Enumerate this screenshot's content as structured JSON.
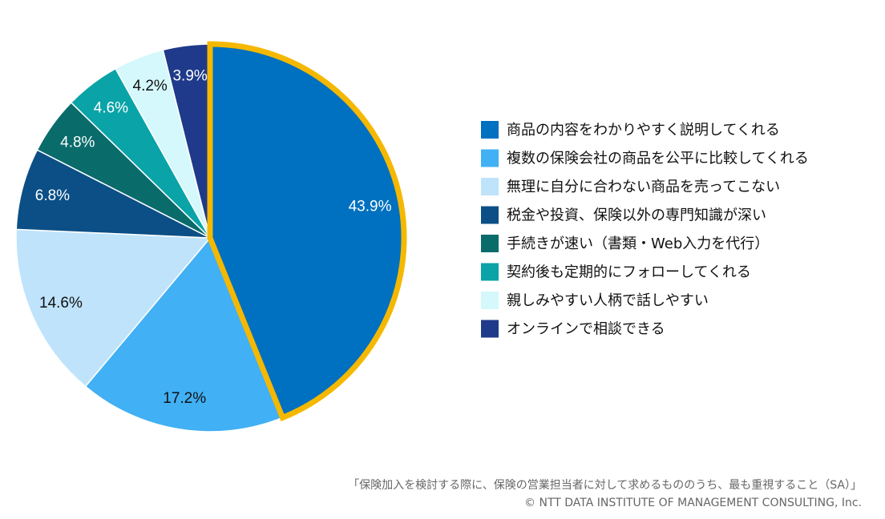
{
  "chart_data": {
    "type": "pie",
    "categories": [
      "商品の内容をわかりやすく説明してくれる",
      "複数の保険会社の商品を公平に比較してくれる",
      "無理に自分に合わない商品を売ってこない",
      "税金や投資、保険以外の専門知識が深い",
      "手続きが速い（書類・Web入力を代行）",
      "契約後も定期的にフォローしてくれる",
      "親しみやすい人柄で話しやすい",
      "オンラインで相談できる"
    ],
    "values": [
      43.9,
      17.2,
      14.6,
      6.8,
      4.8,
      4.6,
      4.2,
      3.9
    ],
    "value_labels": [
      "43.9%",
      "17.2%",
      "14.6%",
      "6.8%",
      "4.8%",
      "4.6%",
      "4.2%",
      "3.9%"
    ],
    "colors": [
      "#0070c0",
      "#41b0f5",
      "#bfe3fb",
      "#0b4f86",
      "#0a6b6b",
      "#0aa3a8",
      "#d4f8fb",
      "#1f3a8a"
    ],
    "highlight": {
      "index": 0,
      "color": "#f5b800"
    },
    "legend": "right",
    "footnote": "「保険加入を検討する際に、保険の営業担当者に対して求めるもののうち、最も重視すること（SA）」",
    "source": "© NTT DATA INSTITUTE OF MANAGEMENT CONSULTING, Inc."
  }
}
